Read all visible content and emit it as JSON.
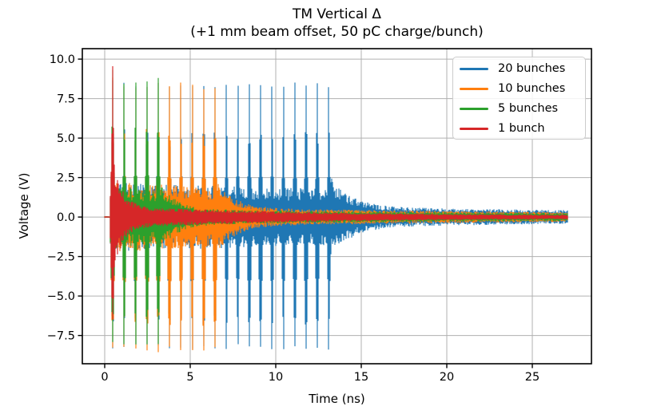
{
  "accent_colors": {
    "blue": "#1f77b4",
    "orange": "#ff7f0e",
    "green": "#2ca02c",
    "red": "#d62728",
    "grid": "#b0b0b0",
    "spine": "#000000"
  },
  "chart_data": {
    "type": "line",
    "title": "TM Vertical Δ",
    "subtitle": "(+1 mm beam offset, 50 pC charge/bunch)",
    "xlabel": "Time (ns)",
    "ylabel": "Voltage (V)",
    "xlim": [
      -1.31,
      28.46
    ],
    "ylim": [
      -9.29,
      10.66
    ],
    "xticks": [
      {
        "v": 0,
        "label": "0"
      },
      {
        "v": 5,
        "label": "5"
      },
      {
        "v": 10,
        "label": "10"
      },
      {
        "v": 15,
        "label": "15"
      },
      {
        "v": 20,
        "label": "20"
      },
      {
        "v": 25,
        "label": "25"
      }
    ],
    "yticks": [
      {
        "v": 10.0,
        "label": "10.0"
      },
      {
        "v": 7.5,
        "label": "7.5"
      },
      {
        "v": 5.0,
        "label": "5.0"
      },
      {
        "v": 2.5,
        "label": "2.5"
      },
      {
        "v": 0.0,
        "label": "0.0"
      },
      {
        "v": -2.5,
        "label": "−2.5"
      },
      {
        "v": -5.0,
        "label": "−5.0"
      },
      {
        "v": -7.5,
        "label": "−7.5"
      }
    ],
    "grid": true,
    "legend_position": "upper right",
    "signal": {
      "first_bunch_ns": 0.47,
      "bunch_spacing_ns": 0.665,
      "time_range_ns": [
        0,
        27.06
      ],
      "waveform": "damped high-frequency oscillation burst per bunch; narrow spikes at each bunch arrival over a noisy decaying baseline band that rings down after the last bunch"
    },
    "series": [
      {
        "name": "20 bunches",
        "color": "#1f77b4",
        "n_bunches": 20,
        "first_peak_v": 8.75,
        "peak_v": 8.7,
        "neg_peak_v": -8.45,
        "train_end_ns": 13.1,
        "in_train_band_v": 1.7,
        "tail": {
          "fast_amp": 1.6,
          "fast_tau": 1.2,
          "slow_amp": 0.42,
          "slow_tau": 25,
          "floor": 0.1
        }
      },
      {
        "name": "10 bunches",
        "color": "#ff7f0e",
        "n_bunches": 10,
        "first_peak_v": 8.85,
        "peak_v": 8.7,
        "neg_peak_v": -8.6,
        "train_end_ns": 6.46,
        "in_train_band_v": 1.75,
        "tail": {
          "fast_amp": 1.6,
          "fast_tau": 1.0,
          "slow_amp": 0.38,
          "slow_tau": 25,
          "floor": 0.08
        }
      },
      {
        "name": "5 bunches",
        "color": "#2ca02c",
        "n_bunches": 5,
        "first_peak_v": 9.45,
        "peak_v": 8.85,
        "neg_peak_v": -8.1,
        "train_end_ns": 3.13,
        "in_train_band_v": 1.55,
        "tail": {
          "fast_amp": 1.5,
          "fast_tau": 0.9,
          "slow_amp": 0.33,
          "slow_tau": 25,
          "floor": 0.07
        }
      },
      {
        "name": "1 bunch",
        "color": "#d62728",
        "n_bunches": 1,
        "first_peak_v": 9.85,
        "peak_v": 9.85,
        "neg_peak_v": -6.8,
        "train_end_ns": 0.47,
        "in_train_band_v": 0,
        "tail": {
          "fast_amp": 2.6,
          "fast_tau": 0.5,
          "slow_amp": 0.5,
          "slow_tau": 12,
          "floor": 0.06
        }
      }
    ]
  }
}
